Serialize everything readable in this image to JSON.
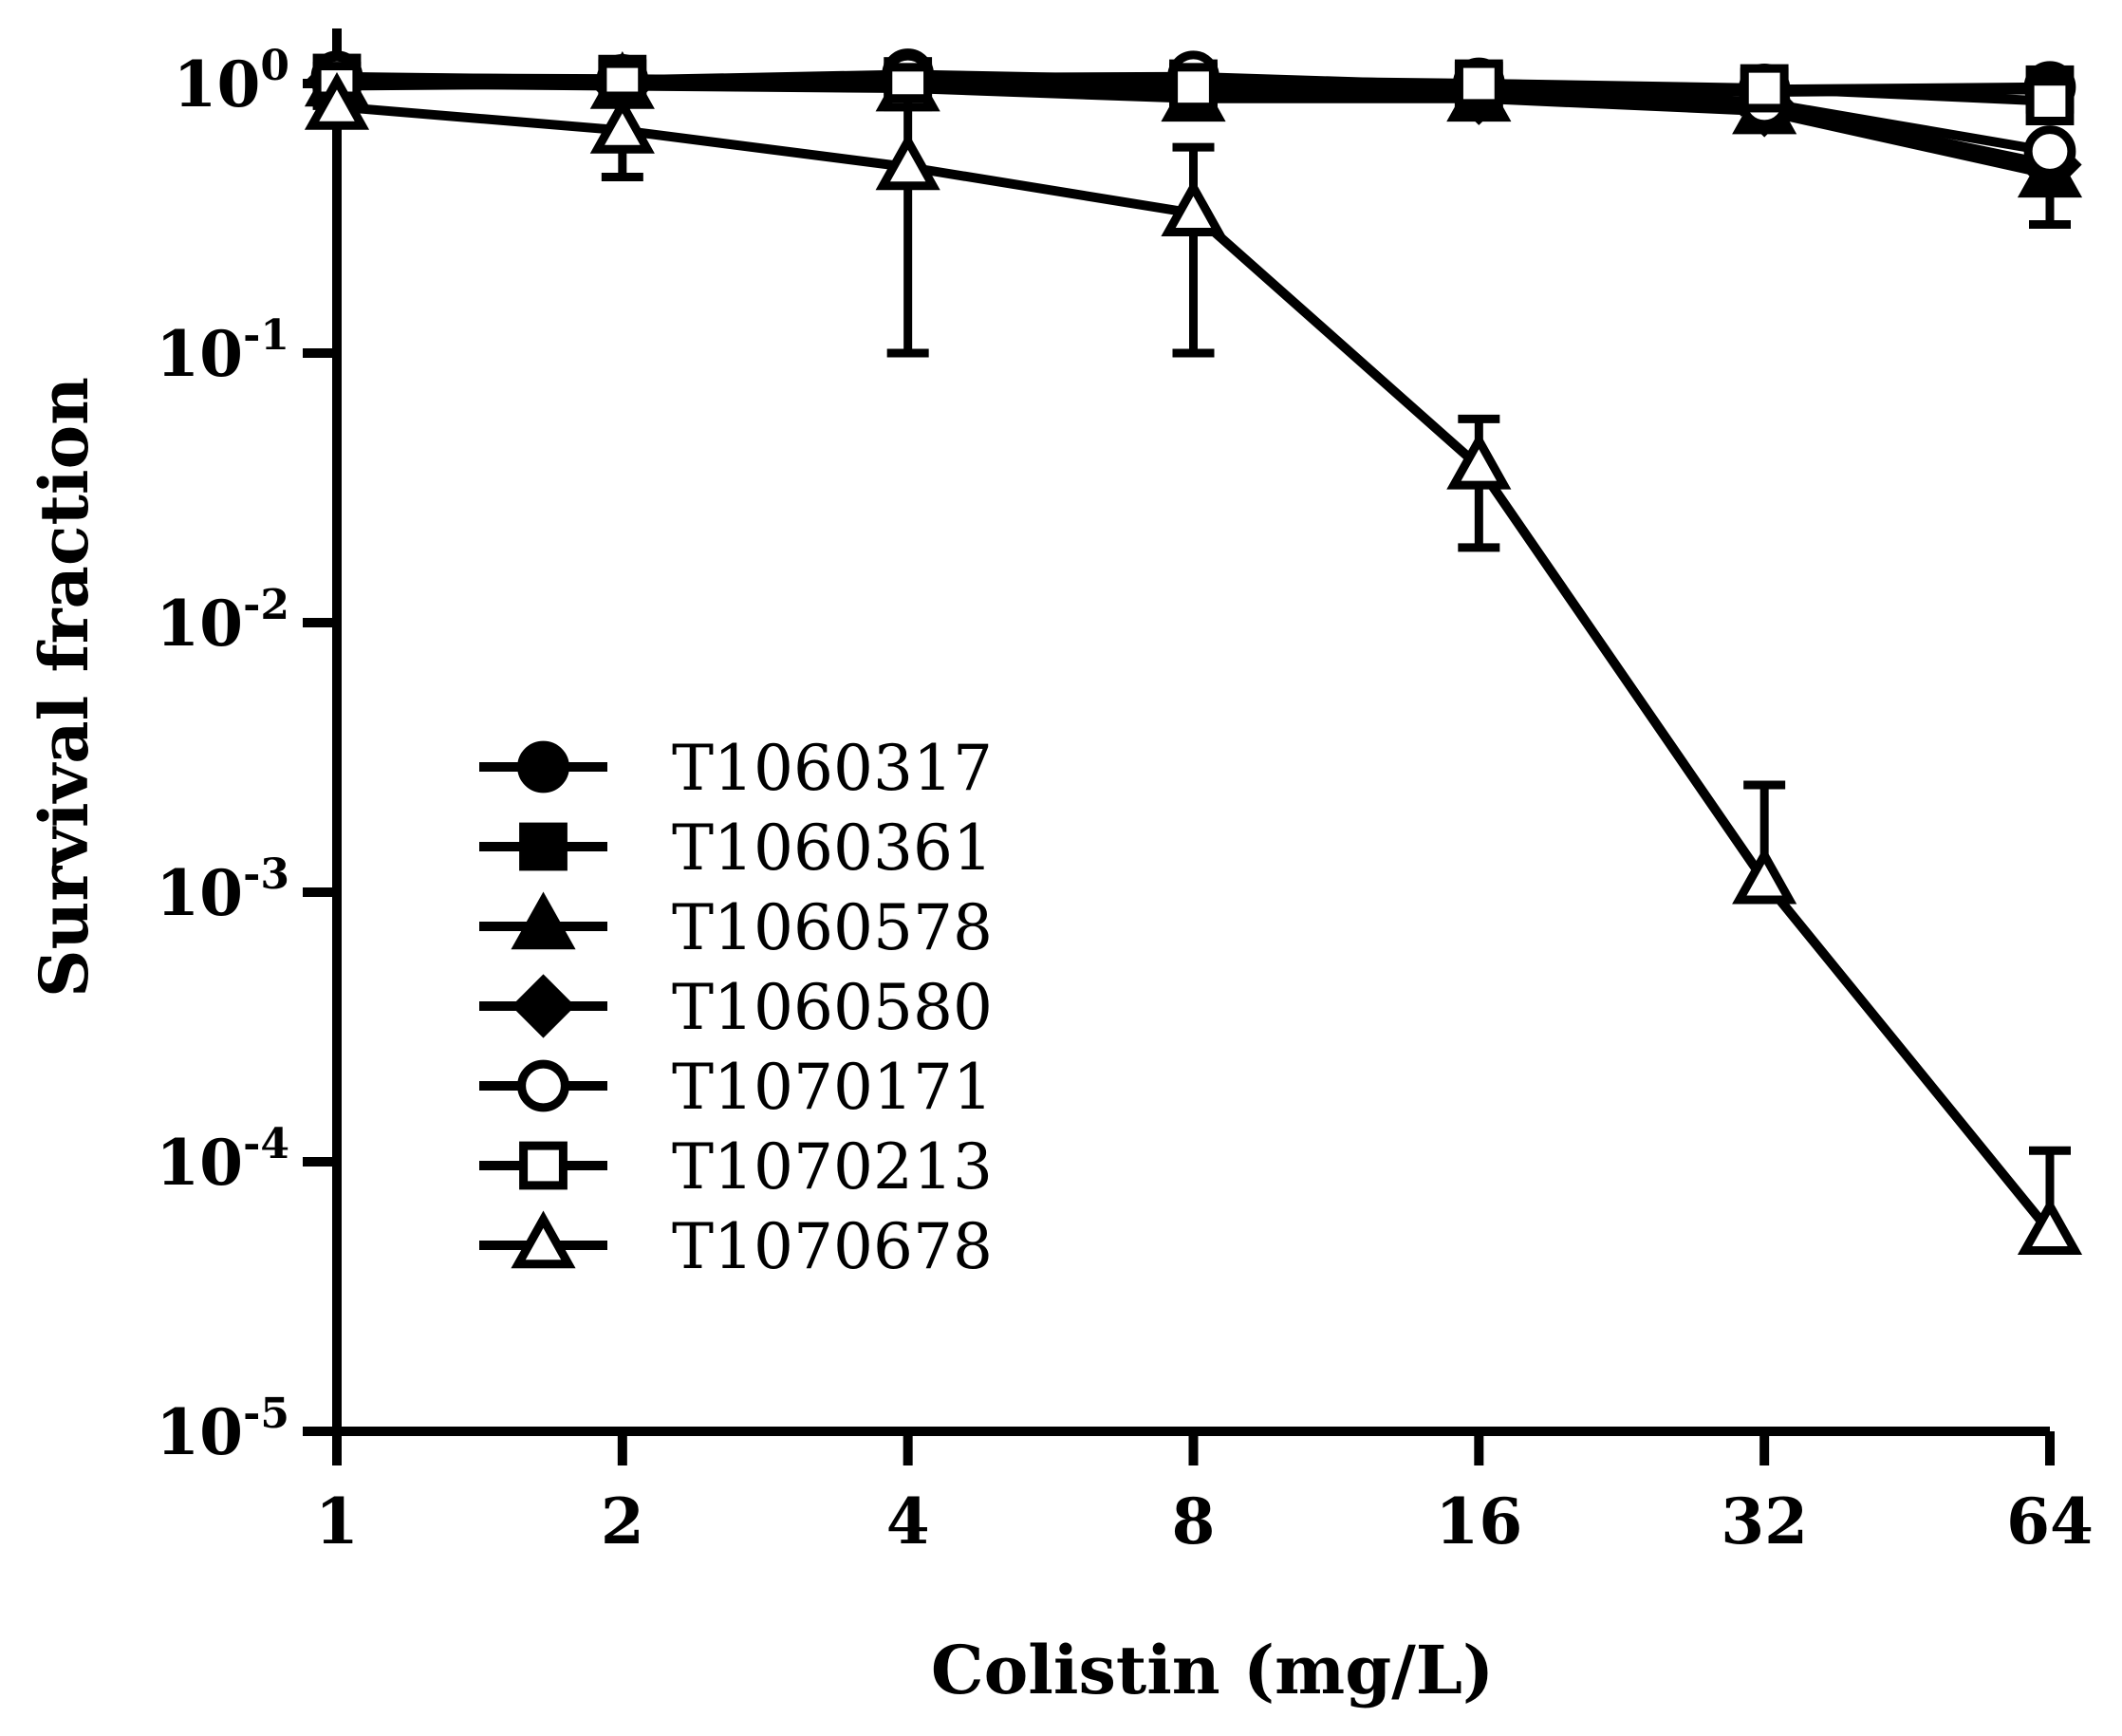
{
  "chart_data": {
    "type": "line",
    "title": "",
    "xlabel": "Colistin (mg/L)",
    "ylabel": "Survival fraction",
    "x_scale": "log2",
    "y_scale": "log10",
    "x": [
      1,
      2,
      4,
      8,
      16,
      32,
      64
    ],
    "x_tick_labels": [
      "1",
      "2",
      "4",
      "8",
      "16",
      "32",
      "64"
    ],
    "ylim": [
      1e-05,
      1.2
    ],
    "y_ticks": [
      {
        "value": 1,
        "base": "10",
        "exponent": "0"
      },
      {
        "value": 0.1,
        "base": "10",
        "exponent": "-1"
      },
      {
        "value": 0.01,
        "base": "10",
        "exponent": "-2"
      },
      {
        "value": 0.001,
        "base": "10",
        "exponent": "-3"
      },
      {
        "value": 0.0001,
        "base": "10",
        "exponent": "-4"
      },
      {
        "value": 1e-05,
        "base": "10",
        "exponent": "-5"
      }
    ],
    "grid": false,
    "legend_position": "lower-left",
    "series": [
      {
        "name": "T1060317",
        "marker": "circle",
        "filled": true,
        "values": [
          1.06,
          1.03,
          1.08,
          1.03,
          1.0,
          0.95,
          0.97
        ],
        "errors": []
      },
      {
        "name": "T1060361",
        "marker": "square",
        "filled": true,
        "values": [
          1.05,
          1.04,
          1.02,
          1.0,
          0.98,
          0.93,
          0.95
        ],
        "errors": []
      },
      {
        "name": "T1060578",
        "marker": "triangle",
        "filled": true,
        "values": [
          1.0,
          0.98,
          0.96,
          0.88,
          0.88,
          0.79,
          0.46
        ],
        "errors": [
          {
            "x": 64,
            "low": 0.3,
            "high": 0.6
          }
        ]
      },
      {
        "name": "T1060580",
        "marker": "diamond",
        "filled": true,
        "values": [
          1.02,
          0.99,
          1.0,
          0.95,
          0.92,
          0.83,
          0.5
        ],
        "errors": []
      },
      {
        "name": "T1070171",
        "marker": "circle",
        "filled": false,
        "values": [
          1.04,
          1.01,
          1.05,
          1.06,
          0.98,
          0.85,
          0.56
        ],
        "errors": []
      },
      {
        "name": "T1070213",
        "marker": "square",
        "filled": false,
        "values": [
          0.98,
          1.0,
          0.97,
          0.97,
          1.0,
          0.96,
          0.86
        ],
        "errors": []
      },
      {
        "name": "T1070678",
        "marker": "triangle",
        "filled": false,
        "values": [
          0.82,
          0.67,
          0.49,
          0.33,
          0.038,
          0.0011,
          5.5e-05
        ],
        "errors": [
          {
            "x": 1,
            "low": 0.73,
            "high": 0.9
          },
          {
            "x": 2,
            "low": 0.45,
            "high": 0.9
          },
          {
            "x": 4,
            "low": 0.1,
            "high": 0.88
          },
          {
            "x": 8,
            "low": 0.1,
            "high": 0.58
          },
          {
            "x": 16,
            "low": 0.019,
            "high": 0.057
          },
          {
            "x": 32,
            "low": 0.001,
            "high": 0.0025
          },
          {
            "x": 64,
            "low": 5e-05,
            "high": 0.00011
          }
        ]
      }
    ]
  }
}
